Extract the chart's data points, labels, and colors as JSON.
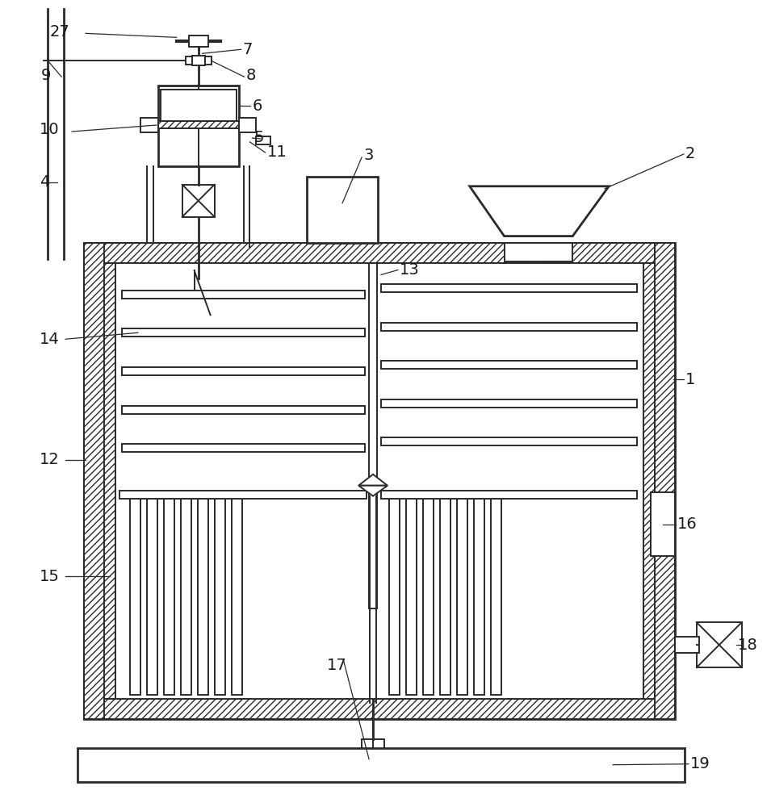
{
  "bg_color": "#ffffff",
  "lc": "#2a2a2a",
  "label_color": "#1a1a1a",
  "fs": 14,
  "fig_width": 9.55,
  "fig_height": 10.0,
  "lw": 1.4,
  "lw2": 2.0
}
